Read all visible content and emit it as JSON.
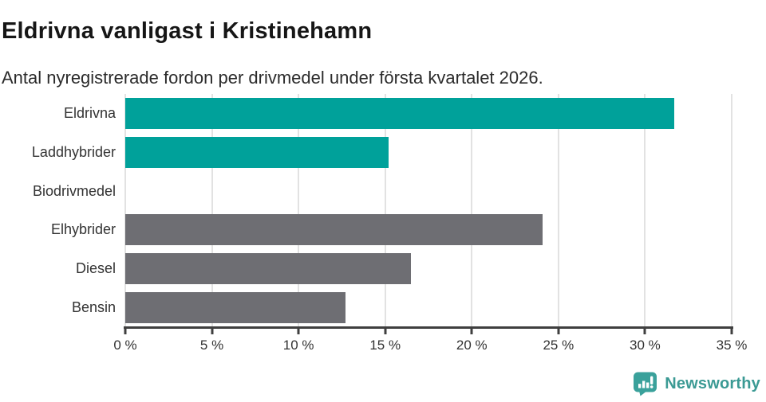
{
  "header": {
    "title": "Eldrivna vanligast i Kristinehamn",
    "subtitle": "Antal nyregistrerade fordon per drivmedel under första kvartalet 2026."
  },
  "chart_data": {
    "type": "bar",
    "orientation": "horizontal",
    "title": "Eldrivna vanligast i Kristinehamn",
    "categories": [
      "Eldrivna",
      "Laddhybrider",
      "Biodrivmedel",
      "Elhybrider",
      "Diesel",
      "Bensin"
    ],
    "values": [
      31.7,
      15.2,
      0,
      24.1,
      16.5,
      12.7
    ],
    "bar_colors": [
      "#00a19a",
      "#00a19a",
      "#6e6e73",
      "#6e6e73",
      "#6e6e73",
      "#6e6e73"
    ],
    "unit": "%",
    "xlim": [
      0,
      35
    ],
    "x_ticks": [
      0,
      5,
      10,
      15,
      20,
      25,
      30,
      35
    ],
    "x_tick_labels": [
      "0 %",
      "5 %",
      "10 %",
      "15 %",
      "20 %",
      "25 %",
      "30 %",
      "35 %"
    ],
    "grid": "vertical-only",
    "legend": "none"
  },
  "branding": {
    "logo_text": "Newsworthy",
    "logo_icon": "newsworthy-speech-bubble-chart-icon"
  },
  "colors": {
    "accent_teal": "#00a19a",
    "bar_gray": "#6e6e73",
    "gridline": "#e2e2e2",
    "axis": "#3f3f3f",
    "title_text": "#161616",
    "body_text": "#333333",
    "brand_teal": "#3aa19b"
  }
}
